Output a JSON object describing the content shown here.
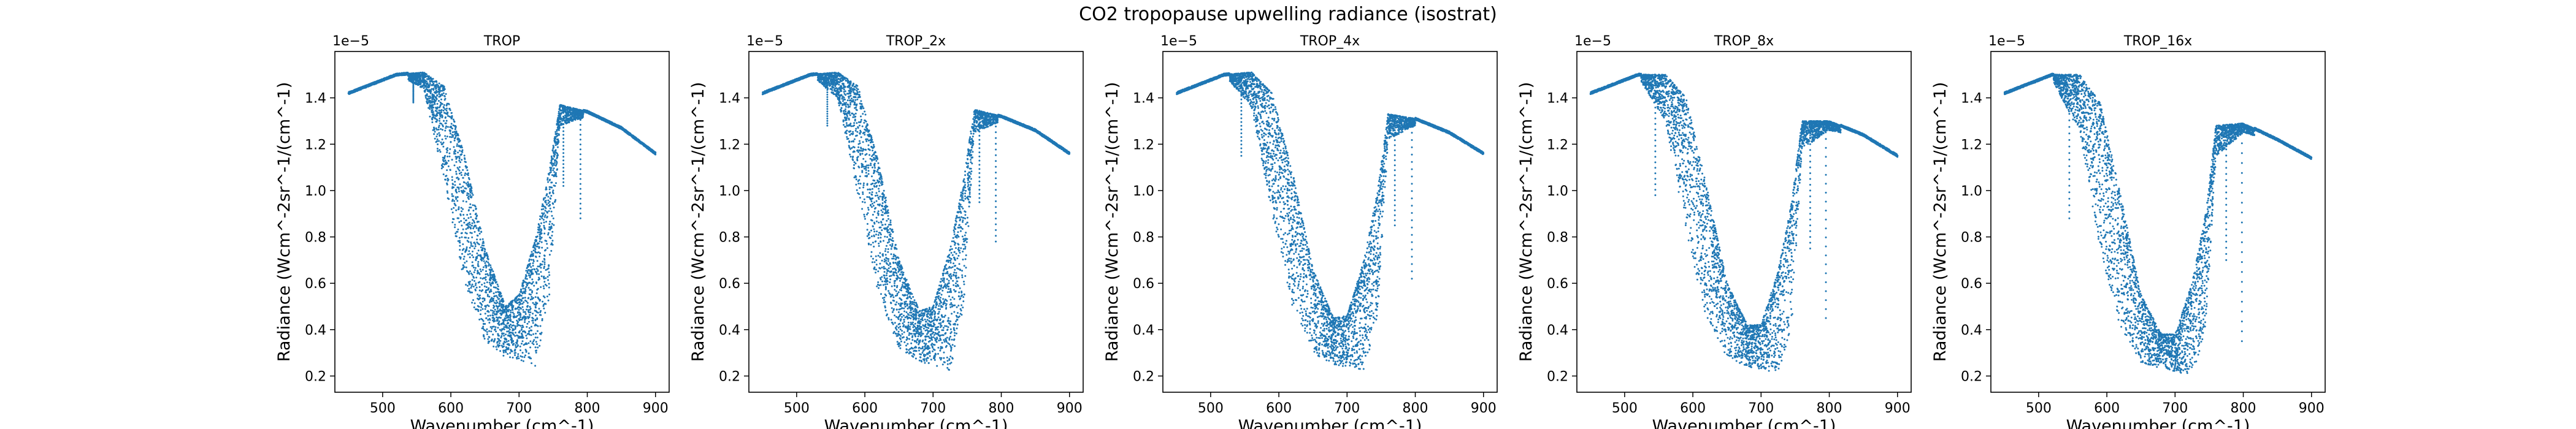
{
  "figure": {
    "suptitle": "CO2 tropopause upwelling radiance (isostrat)"
  },
  "chart_data": [
    {
      "type": "scatter",
      "title": "TROP",
      "xlabel": "Wavenumber (cm^-1)",
      "ylabel": "Radiance (Wcm^-2sr^-1/(cm^-1)",
      "y_scale_label": "1e−5",
      "xlim": [
        430,
        920
      ],
      "ylim": [
        0.13,
        1.6
      ],
      "xticks": [
        500,
        600,
        700,
        800,
        900
      ],
      "yticks": [
        0.2,
        0.4,
        0.6,
        0.8,
        1.0,
        1.2,
        1.4
      ],
      "series_color": "#1f77b4",
      "scatter_points": 5000,
      "envelope": {
        "x": [
          450,
          520,
          560,
          590,
          620,
          650,
          680,
          700,
          725,
          745,
          760,
          800,
          850,
          900
        ],
        "upper": [
          1.42,
          1.5,
          1.51,
          1.45,
          1.15,
          0.75,
          0.5,
          0.55,
          0.8,
          1.1,
          1.37,
          1.34,
          1.27,
          1.16
        ],
        "lower": [
          1.42,
          1.5,
          1.44,
          1.05,
          0.6,
          0.35,
          0.28,
          0.27,
          0.24,
          0.55,
          1.28,
          1.32,
          1.26,
          1.16
        ]
      },
      "dips": [
        {
          "x": 545,
          "ymin": 1.38
        },
        {
          "x": 765,
          "ymin": 1.02
        },
        {
          "x": 790,
          "ymin": 0.88
        }
      ]
    },
    {
      "type": "scatter",
      "title": "TROP_2x",
      "xlabel": "Wavenumber (cm^-1)",
      "ylabel": "Radiance (Wcm^-2sr^-1/(cm^-1)",
      "y_scale_label": "1e−5",
      "xlim": [
        430,
        920
      ],
      "ylim": [
        0.13,
        1.6
      ],
      "xticks": [
        500,
        600,
        700,
        800,
        900
      ],
      "yticks": [
        0.2,
        0.4,
        0.6,
        0.8,
        1.0,
        1.2,
        1.4
      ],
      "series_color": "#1f77b4",
      "scatter_points": 5000,
      "envelope": {
        "x": [
          450,
          520,
          560,
          590,
          620,
          650,
          680,
          700,
          725,
          745,
          760,
          800,
          850,
          900
        ],
        "upper": [
          1.42,
          1.5,
          1.51,
          1.45,
          1.12,
          0.7,
          0.48,
          0.5,
          0.75,
          1.05,
          1.35,
          1.32,
          1.26,
          1.16
        ],
        "lower": [
          1.42,
          1.5,
          1.4,
          0.98,
          0.55,
          0.32,
          0.26,
          0.25,
          0.22,
          0.5,
          1.25,
          1.3,
          1.25,
          1.16
        ]
      },
      "dips": [
        {
          "x": 545,
          "ymin": 1.28
        },
        {
          "x": 768,
          "ymin": 0.95
        },
        {
          "x": 792,
          "ymin": 0.78
        }
      ]
    },
    {
      "type": "scatter",
      "title": "TROP_4x",
      "xlabel": "Wavenumber (cm^-1)",
      "ylabel": "Radiance (Wcm^-2sr^-1/(cm^-1)",
      "y_scale_label": "1e−5",
      "xlim": [
        430,
        920
      ],
      "ylim": [
        0.13,
        1.6
      ],
      "xticks": [
        500,
        600,
        700,
        800,
        900
      ],
      "yticks": [
        0.2,
        0.4,
        0.6,
        0.8,
        1.0,
        1.2,
        1.4
      ],
      "series_color": "#1f77b4",
      "scatter_points": 5000,
      "envelope": {
        "x": [
          450,
          520,
          560,
          590,
          620,
          650,
          680,
          700,
          725,
          745,
          760,
          800,
          850,
          900
        ],
        "upper": [
          1.42,
          1.5,
          1.51,
          1.42,
          1.08,
          0.66,
          0.45,
          0.46,
          0.7,
          1.0,
          1.33,
          1.31,
          1.25,
          1.16
        ],
        "lower": [
          1.42,
          1.5,
          1.36,
          0.9,
          0.5,
          0.3,
          0.25,
          0.24,
          0.22,
          0.45,
          1.22,
          1.28,
          1.24,
          1.16
        ]
      },
      "dips": [
        {
          "x": 545,
          "ymin": 1.15
        },
        {
          "x": 770,
          "ymin": 0.85
        },
        {
          "x": 795,
          "ymin": 0.62
        }
      ]
    },
    {
      "type": "scatter",
      "title": "TROP_8x",
      "xlabel": "Wavenumber (cm^-1)",
      "ylabel": "Radiance (Wcm^-2sr^-1/(cm^-1)",
      "y_scale_label": "1e−5",
      "xlim": [
        430,
        920
      ],
      "ylim": [
        0.13,
        1.6
      ],
      "xticks": [
        500,
        600,
        700,
        800,
        900
      ],
      "yticks": [
        0.2,
        0.4,
        0.6,
        0.8,
        1.0,
        1.2,
        1.4
      ],
      "series_color": "#1f77b4",
      "scatter_points": 5000,
      "envelope": {
        "x": [
          450,
          520,
          560,
          590,
          620,
          650,
          680,
          700,
          725,
          745,
          760,
          800,
          850,
          900
        ],
        "upper": [
          1.42,
          1.5,
          1.5,
          1.4,
          1.02,
          0.6,
          0.42,
          0.42,
          0.65,
          0.95,
          1.3,
          1.3,
          1.24,
          1.15
        ],
        "lower": [
          1.42,
          1.49,
          1.3,
          0.82,
          0.45,
          0.28,
          0.24,
          0.23,
          0.21,
          0.42,
          1.18,
          1.26,
          1.23,
          1.14
        ]
      },
      "dips": [
        {
          "x": 545,
          "ymin": 0.98
        },
        {
          "x": 772,
          "ymin": 0.75
        },
        {
          "x": 795,
          "ymin": 0.45
        }
      ]
    },
    {
      "type": "scatter",
      "title": "TROP_16x",
      "xlabel": "Wavenumber (cm^-1)",
      "ylabel": "Radiance (Wcm^-2sr^-1/(cm^-1)",
      "y_scale_label": "1e−5",
      "xlim": [
        430,
        920
      ],
      "ylim": [
        0.13,
        1.6
      ],
      "xticks": [
        500,
        600,
        700,
        800,
        900
      ],
      "yticks": [
        0.2,
        0.4,
        0.6,
        0.8,
        1.0,
        1.2,
        1.4
      ],
      "series_color": "#1f77b4",
      "scatter_points": 5000,
      "envelope": {
        "x": [
          450,
          520,
          560,
          590,
          620,
          650,
          680,
          700,
          725,
          745,
          760,
          800,
          850,
          900
        ],
        "upper": [
          1.42,
          1.5,
          1.5,
          1.38,
          0.98,
          0.55,
          0.38,
          0.38,
          0.6,
          0.9,
          1.28,
          1.29,
          1.22,
          1.14
        ],
        "lower": [
          1.42,
          1.48,
          1.25,
          0.75,
          0.4,
          0.26,
          0.23,
          0.22,
          0.2,
          0.4,
          1.15,
          1.25,
          1.21,
          1.12
        ]
      },
      "dips": [
        {
          "x": 545,
          "ymin": 0.88
        },
        {
          "x": 775,
          "ymin": 0.7
        },
        {
          "x": 798,
          "ymin": 0.35
        }
      ]
    }
  ]
}
